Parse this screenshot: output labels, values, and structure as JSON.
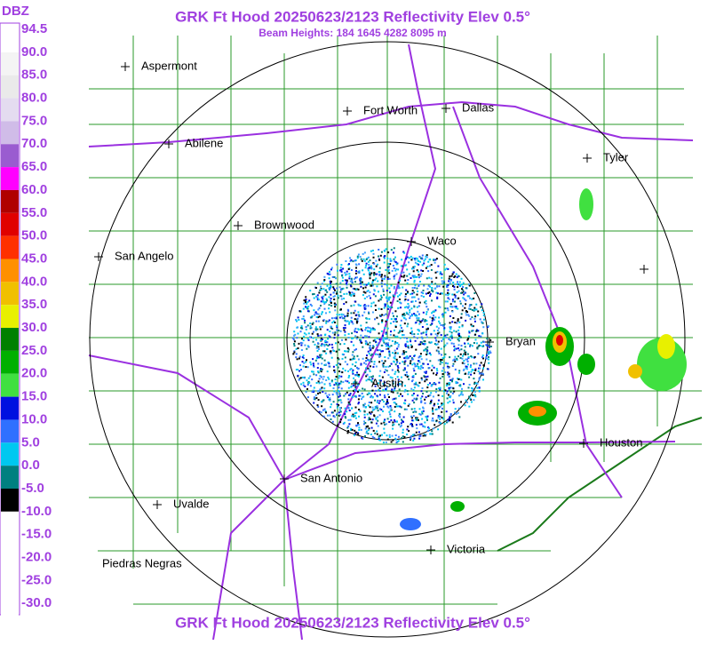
{
  "header": {
    "title": "GRK Ft Hood 20250623/2123 Reflectivity Elev 0.5°",
    "subtitle": "Beam Heights: 184 1645 4282 8095 m",
    "footer": "GRK Ft Hood 20250623/2123 Reflectivity Elev 0.5°"
  },
  "legend": {
    "unit": "DBZ",
    "items": [
      {
        "label": "94.5",
        "color": "#ffffff"
      },
      {
        "label": "90.0",
        "color": "#f4f4f4"
      },
      {
        "label": "85.0",
        "color": "#eaeaea"
      },
      {
        "label": "80.0",
        "color": "#e4dcf0"
      },
      {
        "label": "75.0",
        "color": "#d0bce8"
      },
      {
        "label": "70.0",
        "color": "#9a5cd0"
      },
      {
        "label": "65.0",
        "color": "#ff00ff"
      },
      {
        "label": "60.0",
        "color": "#b00000"
      },
      {
        "label": "55.0",
        "color": "#e00000"
      },
      {
        "label": "50.0",
        "color": "#ff3000"
      },
      {
        "label": "45.0",
        "color": "#ff9000"
      },
      {
        "label": "40.0",
        "color": "#f0c000"
      },
      {
        "label": "35.0",
        "color": "#e8f000"
      },
      {
        "label": "30.0",
        "color": "#008000"
      },
      {
        "label": "25.0",
        "color": "#00b000"
      },
      {
        "label": "20.0",
        "color": "#40e040"
      },
      {
        "label": "15.0",
        "color": "#0010e0"
      },
      {
        "label": "10.0",
        "color": "#3070ff"
      },
      {
        "label": "5.0",
        "color": "#00c8f0"
      },
      {
        "label": "0.0",
        "color": "#008080"
      },
      {
        "label": "-5.0",
        "color": "#000000"
      },
      {
        "label": "-10.0",
        "color": "#ffffff"
      },
      {
        "label": "-15.0",
        "color": "#ffffff"
      },
      {
        "label": "-20.0",
        "color": "#ffffff"
      },
      {
        "label": "-25.0",
        "color": "#ffffff"
      },
      {
        "label": "-30.0",
        "color": "#ffffff"
      }
    ]
  },
  "cities": [
    {
      "name": "Aspermont"
    },
    {
      "name": "Fort Worth"
    },
    {
      "name": "Dallas"
    },
    {
      "name": "Abilene"
    },
    {
      "name": "Tyler"
    },
    {
      "name": "Brownwood"
    },
    {
      "name": "Waco"
    },
    {
      "name": "San Angelo"
    },
    {
      "name": "Bryan"
    },
    {
      "name": "Austin"
    },
    {
      "name": "Houston"
    },
    {
      "name": "San Antonio"
    },
    {
      "name": "Uvalde"
    },
    {
      "name": "Victoria"
    },
    {
      "name": "Piedras Negras"
    }
  ]
}
